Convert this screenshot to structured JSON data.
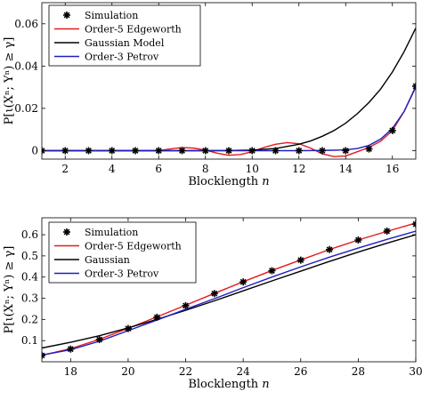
{
  "chart_data": [
    {
      "type": "line",
      "xlabel": "Blocklength 𝑛",
      "ylabel": "P[ι(Xⁿ; Yⁿ) ≥ γ]",
      "xlim": [
        1,
        17
      ],
      "ylim": [
        -0.004,
        0.07
      ],
      "xticks": [
        2,
        4,
        6,
        8,
        10,
        12,
        14,
        16
      ],
      "yticks": [
        0,
        0.02,
        0.04,
        0.06
      ],
      "ytick_labels": [
        "0",
        "0.02",
        "0.04",
        "0.06"
      ],
      "grid": false,
      "legend_position": "top-left",
      "series": [
        {
          "name": "Simulation",
          "kind": "markers",
          "color": "#000000",
          "x": [
            1,
            2,
            3,
            4,
            5,
            6,
            7,
            8,
            9,
            10,
            11,
            12,
            13,
            14,
            15,
            16,
            17
          ],
          "y": [
            0,
            0,
            0,
            0,
            0,
            0,
            0,
            0,
            0,
            0,
            0,
            0,
            0,
            0,
            0.0008,
            0.0095,
            0.0305
          ]
        },
        {
          "name": "Order-5 Edgeworth",
          "kind": "line",
          "color": "#e41a1c",
          "x": [
            1,
            2,
            3,
            4,
            5,
            5.5,
            6,
            6.5,
            7,
            7.5,
            8,
            8.5,
            9,
            9.5,
            10,
            10.5,
            11,
            11.5,
            12,
            12.5,
            13,
            13.5,
            14,
            14.5,
            15,
            15.5,
            16,
            16.5,
            17
          ],
          "y": [
            0,
            0,
            0,
            0,
            0,
            0,
            0,
            0.0008,
            0.0015,
            0.0012,
            0.0003,
            -0.0012,
            -0.0022,
            -0.0018,
            -0.0005,
            0.0015,
            0.003,
            0.0038,
            0.0033,
            0.0012,
            -0.0015,
            -0.0028,
            -0.0025,
            -0.0005,
            0.0015,
            0.0045,
            0.0095,
            0.0185,
            0.0305
          ]
        },
        {
          "name": "Gaussian Model",
          "kind": "line",
          "color": "#000000",
          "x": [
            1,
            2,
            3,
            4,
            5,
            6,
            7,
            8,
            9,
            10,
            11,
            12,
            12.5,
            13,
            13.5,
            14,
            14.5,
            15,
            15.5,
            16,
            16.5,
            17
          ],
          "y": [
            0,
            0,
            0,
            0,
            0,
            0,
            0,
            0,
            5e-05,
            0.0003,
            0.001,
            0.003,
            0.0046,
            0.0068,
            0.0095,
            0.013,
            0.0175,
            0.0228,
            0.0292,
            0.0372,
            0.0468,
            0.058
          ]
        },
        {
          "name": "Order-3 Petrov",
          "kind": "line",
          "color": "#1f1fbf",
          "x": [
            1,
            2,
            3,
            4,
            5,
            6,
            7,
            8,
            9,
            10,
            11,
            12,
            13,
            13.5,
            14,
            14.5,
            15,
            15.5,
            16,
            16.5,
            17
          ],
          "y": [
            0,
            0,
            0,
            0,
            0,
            0,
            0,
            0,
            0,
            0,
            0,
            0,
            0.0001,
            0.0002,
            0.0004,
            0.001,
            0.0025,
            0.0055,
            0.0105,
            0.0185,
            0.03
          ]
        }
      ]
    },
    {
      "type": "line",
      "xlabel": "Blocklength 𝑛",
      "ylabel": "P[ι(Xⁿ; Yⁿ) ≥ γ]",
      "xlim": [
        17,
        30
      ],
      "ylim": [
        0,
        0.68
      ],
      "xticks": [
        18,
        20,
        22,
        24,
        26,
        28,
        30
      ],
      "yticks": [
        0.1,
        0.2,
        0.3,
        0.4,
        0.5,
        0.6
      ],
      "ytick_labels": [
        "0.1",
        "0.2",
        "0.3",
        "0.4",
        "0.5",
        "0.6"
      ],
      "grid": false,
      "legend_position": "top-left",
      "series": [
        {
          "name": "Simulation",
          "kind": "markers",
          "color": "#000000",
          "x": [
            17,
            18,
            19,
            20,
            21,
            22,
            23,
            24,
            25,
            26,
            27,
            28,
            29,
            30
          ],
          "y": [
            0.03,
            0.06,
            0.105,
            0.157,
            0.21,
            0.265,
            0.322,
            0.377,
            0.43,
            0.48,
            0.53,
            0.575,
            0.617,
            0.65
          ]
        },
        {
          "name": "Order-5 Edgeworth",
          "kind": "line",
          "color": "#e41a1c",
          "x": [
            17,
            18,
            19,
            20,
            21,
            22,
            23,
            24,
            25,
            26,
            27,
            28,
            29,
            30
          ],
          "y": [
            0.03,
            0.062,
            0.106,
            0.158,
            0.212,
            0.267,
            0.323,
            0.378,
            0.431,
            0.481,
            0.53,
            0.575,
            0.616,
            0.655
          ]
        },
        {
          "name": "Gaussian",
          "kind": "line",
          "color": "#000000",
          "x": [
            17,
            18,
            19,
            20,
            21,
            22,
            23,
            24,
            25,
            26,
            27,
            28,
            29,
            30
          ],
          "y": [
            0.065,
            0.092,
            0.123,
            0.16,
            0.2,
            0.243,
            0.288,
            0.335,
            0.382,
            0.428,
            0.474,
            0.518,
            0.56,
            0.6
          ]
        },
        {
          "name": "Order-3 Petrov",
          "kind": "line",
          "color": "#1f1fbf",
          "x": [
            17,
            18,
            19,
            20,
            21,
            22,
            23,
            24,
            25,
            26,
            27,
            28,
            29,
            30
          ],
          "y": [
            0.032,
            0.057,
            0.097,
            0.147,
            0.197,
            0.248,
            0.298,
            0.35,
            0.4,
            0.448,
            0.494,
            0.537,
            0.578,
            0.617
          ]
        }
      ]
    }
  ]
}
